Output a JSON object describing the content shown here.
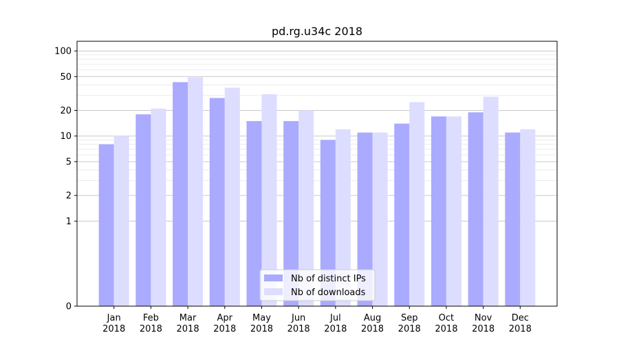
{
  "chart_data": {
    "type": "bar",
    "title": "pd.rg.u34c 2018",
    "xlabel": "",
    "ylabel": "",
    "y_scale": "symlog",
    "ylim": [
      0,
      130
    ],
    "y_ticks": [
      0,
      1,
      2,
      5,
      10,
      20,
      50,
      100
    ],
    "y_tick_labels": [
      "0",
      "1",
      "2",
      "5",
      "10",
      "20",
      "50",
      "100"
    ],
    "categories": [
      "Jan\n2018",
      "Feb\n2018",
      "Mar\n2018",
      "Apr\n2018",
      "May\n2018",
      "Jun\n2018",
      "Jul\n2018",
      "Aug\n2018",
      "Sep\n2018",
      "Oct\n2018",
      "Nov\n2018",
      "Dec\n2018"
    ],
    "category_lines": [
      [
        "Jan",
        "2018"
      ],
      [
        "Feb",
        "2018"
      ],
      [
        "Mar",
        "2018"
      ],
      [
        "Apr",
        "2018"
      ],
      [
        "May",
        "2018"
      ],
      [
        "Jun",
        "2018"
      ],
      [
        "Jul",
        "2018"
      ],
      [
        "Aug",
        "2018"
      ],
      [
        "Sep",
        "2018"
      ],
      [
        "Oct",
        "2018"
      ],
      [
        "Nov",
        "2018"
      ],
      [
        "Dec",
        "2018"
      ]
    ],
    "series": [
      {
        "name": "Nb of distinct IPs",
        "color": "#aaaaff",
        "values": [
          8,
          18,
          43,
          28,
          15,
          15,
          9,
          11,
          14,
          17,
          19,
          11
        ]
      },
      {
        "name": "Nb of downloads",
        "color": "#ddddff",
        "values": [
          10,
          21,
          49,
          37,
          31,
          20,
          12,
          11,
          25,
          17,
          29,
          12
        ]
      }
    ],
    "grid": true,
    "legend_position": "lower-center"
  }
}
